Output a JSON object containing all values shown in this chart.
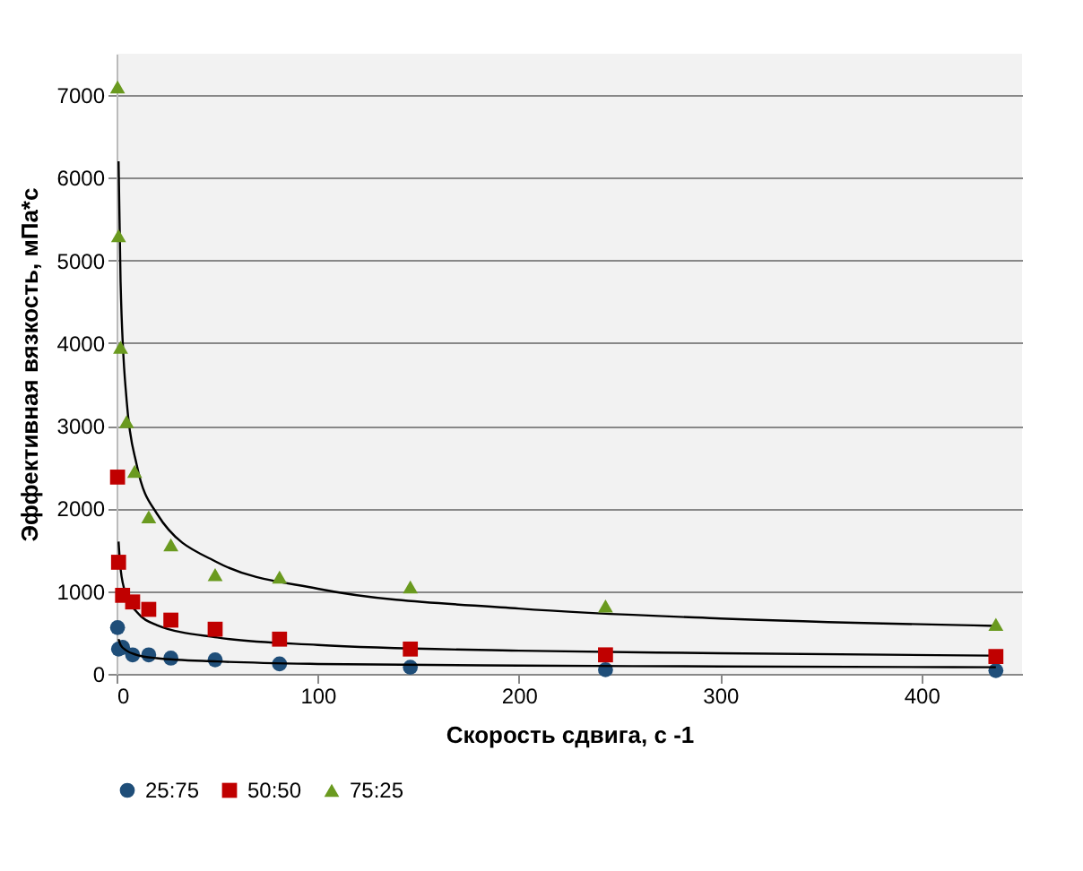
{
  "chart_data": {
    "type": "scatter",
    "xlabel": "Скорость сдвига, с -1",
    "ylabel": "Эффективная вязкость, мПа*с",
    "xlim": [
      0,
      450
    ],
    "xticks": [
      0,
      100,
      200,
      300,
      400
    ],
    "ylim": [
      0,
      7500
    ],
    "yticks": [
      0,
      1000,
      2000,
      3000,
      4000,
      5000,
      6000,
      7000
    ],
    "grid": "y",
    "legend": "bottom",
    "series": [
      {
        "name": "25:75",
        "color": "#1f4e79",
        "marker": "circle",
        "x": [
          0.5,
          1,
          3,
          8,
          16,
          27,
          49,
          81,
          146,
          243,
          437
        ],
        "values": [
          560,
          300,
          320,
          230,
          230,
          190,
          170,
          120,
          80,
          50,
          40
        ]
      },
      {
        "name": "50:50",
        "color": "#c00000",
        "marker": "square",
        "x": [
          0.5,
          1,
          3,
          8,
          16,
          27,
          49,
          81,
          146,
          243,
          437
        ],
        "values": [
          2380,
          1350,
          950,
          870,
          780,
          650,
          540,
          420,
          300,
          230,
          210
        ]
      },
      {
        "name": "75:25",
        "color": "#6a9a1f",
        "marker": "triangle",
        "x": [
          0.5,
          1,
          2,
          5,
          9,
          16,
          27,
          49,
          81,
          146,
          243,
          437
        ],
        "values": [
          7100,
          5300,
          3950,
          3050,
          2450,
          1900,
          1560,
          1200,
          1170,
          1050,
          820,
          600
        ]
      },
      {
        "type": "line",
        "color": "#000000",
        "x": [
          1,
          2,
          5,
          10,
          20,
          50,
          100,
          200,
          300,
          437
        ],
        "values": [
          420,
          350,
          280,
          230,
          190,
          150,
          120,
          100,
          90,
          80
        ]
      },
      {
        "type": "line",
        "color": "#000000",
        "x": [
          1,
          2,
          5,
          10,
          20,
          50,
          100,
          200,
          300,
          437
        ],
        "values": [
          1600,
          1270,
          940,
          750,
          590,
          440,
          350,
          280,
          250,
          220
        ]
      },
      {
        "type": "line",
        "color": "#000000",
        "x": [
          1,
          2,
          5,
          10,
          20,
          50,
          100,
          200,
          300,
          437
        ],
        "values": [
          6200,
          4740,
          3310,
          2530,
          1940,
          1350,
          1030,
          790,
          670,
          580
        ]
      }
    ]
  }
}
